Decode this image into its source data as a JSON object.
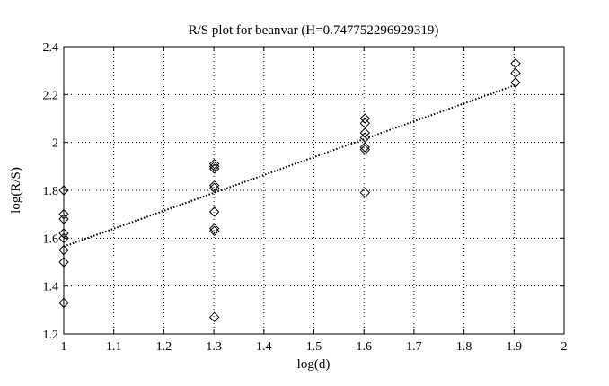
{
  "chart_data": {
    "type": "scatter",
    "title": "R/S plot for beanvar (H=0.747752296929319)",
    "xlabel": "log(d)",
    "ylabel": "log(R/S)",
    "xlim": [
      1,
      2
    ],
    "ylim": [
      1.2,
      2.4
    ],
    "xticks": [
      "1",
      "1.1",
      "1.2",
      "1.3",
      "1.4",
      "1.5",
      "1.6",
      "1.7",
      "1.8",
      "1.9",
      "2"
    ],
    "yticks": [
      "1.2",
      "1.4",
      "1.6",
      "1.8",
      "2",
      "2.2",
      "2.4"
    ],
    "grid": true,
    "marker": "diamond",
    "points": [
      {
        "x": 1.0,
        "y": 1.8
      },
      {
        "x": 1.0,
        "y": 1.7
      },
      {
        "x": 1.0,
        "y": 1.68
      },
      {
        "x": 1.0,
        "y": 1.62
      },
      {
        "x": 1.0,
        "y": 1.6
      },
      {
        "x": 1.0,
        "y": 1.55
      },
      {
        "x": 1.0,
        "y": 1.5
      },
      {
        "x": 1.0,
        "y": 1.33
      },
      {
        "x": 1.301,
        "y": 1.91
      },
      {
        "x": 1.301,
        "y": 1.9
      },
      {
        "x": 1.301,
        "y": 1.89
      },
      {
        "x": 1.301,
        "y": 1.82
      },
      {
        "x": 1.301,
        "y": 1.81
      },
      {
        "x": 1.301,
        "y": 1.71
      },
      {
        "x": 1.301,
        "y": 1.64
      },
      {
        "x": 1.301,
        "y": 1.63
      },
      {
        "x": 1.301,
        "y": 1.27
      },
      {
        "x": 1.602,
        "y": 2.1
      },
      {
        "x": 1.602,
        "y": 2.08
      },
      {
        "x": 1.602,
        "y": 2.04
      },
      {
        "x": 1.602,
        "y": 2.02
      },
      {
        "x": 1.602,
        "y": 1.98
      },
      {
        "x": 1.602,
        "y": 1.97
      },
      {
        "x": 1.602,
        "y": 1.79
      },
      {
        "x": 1.903,
        "y": 2.33
      },
      {
        "x": 1.903,
        "y": 2.29
      },
      {
        "x": 1.903,
        "y": 2.25
      }
    ],
    "fit_line": {
      "x": [
        1.0,
        1.903
      ],
      "y": [
        1.565,
        2.24
      ],
      "style": "dotted"
    }
  }
}
